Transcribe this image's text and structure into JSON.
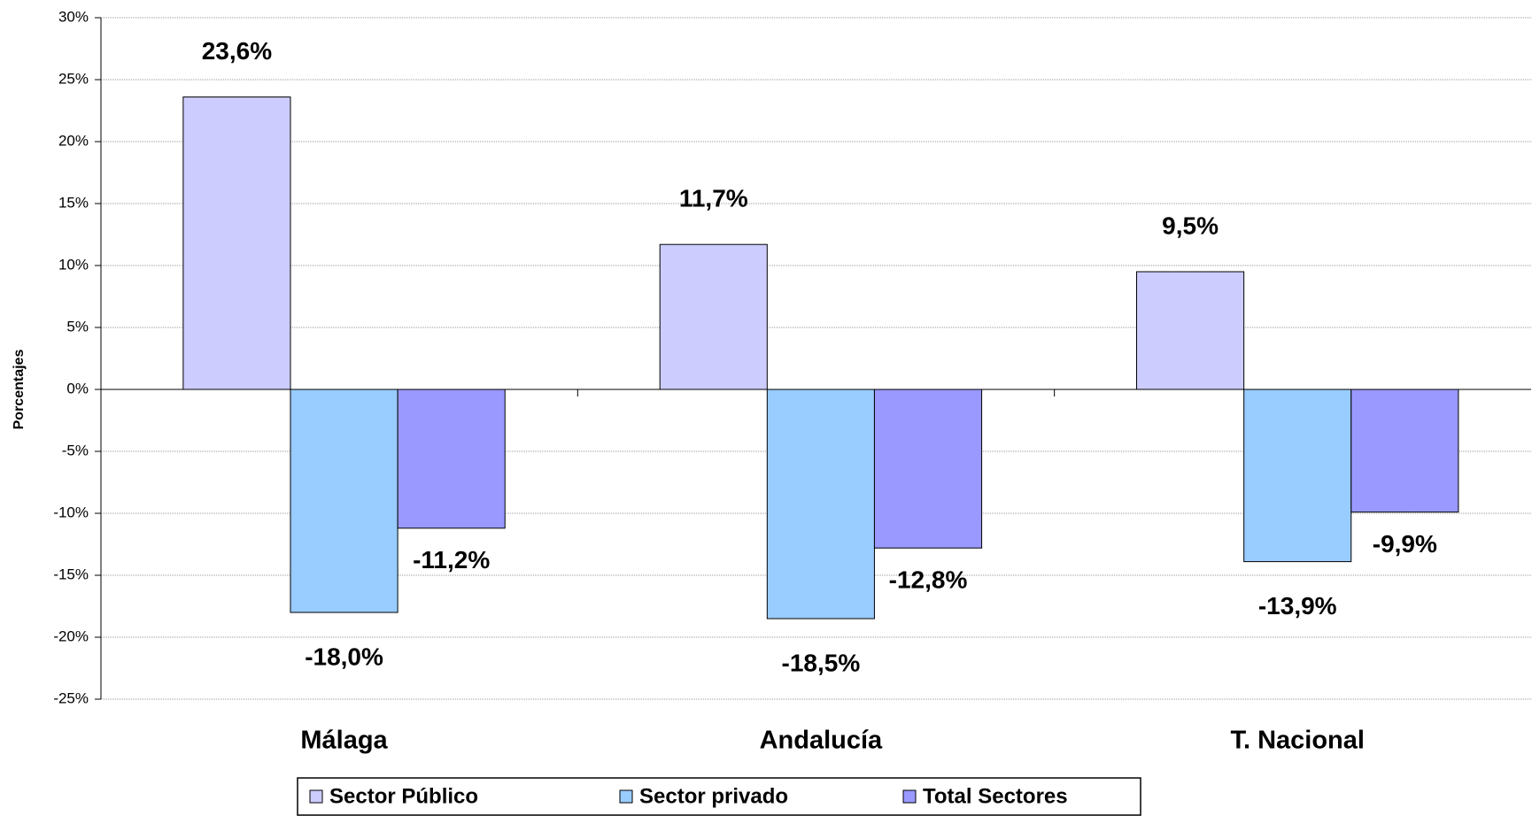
{
  "chart_data": {
    "type": "bar",
    "y_label": "Porcentajes",
    "categories": [
      "Málaga",
      "Andalucía",
      "T. Nacional"
    ],
    "series": [
      {
        "name": "Sector Público",
        "color": "#ccccff",
        "label_color": "#1a1ae6",
        "values": [
          23.6,
          11.7,
          9.5
        ],
        "value_labels": [
          "23,6%",
          "11,7%",
          "9,5%"
        ]
      },
      {
        "name": "Sector privado",
        "color": "#99ccff",
        "label_color": "#1a1ae6",
        "values": [
          -18.0,
          -18.5,
          -13.9
        ],
        "value_labels": [
          "-18,0%",
          "-18,5%",
          "-13,9%"
        ]
      },
      {
        "name": "Total Sectores",
        "color": "#9999ff",
        "label_color": "#000080",
        "values": [
          -11.2,
          -12.8,
          -9.9
        ],
        "value_labels": [
          "-11,2%",
          "-12,8%",
          "-9,9%"
        ]
      }
    ],
    "ylim": [
      -25,
      30
    ],
    "yticks": [
      {
        "value": -25,
        "label": "-25%"
      },
      {
        "value": -20,
        "label": "-20%"
      },
      {
        "value": -15,
        "label": "-15%"
      },
      {
        "value": -10,
        "label": "-10%"
      },
      {
        "value": -5,
        "label": "-5%"
      },
      {
        "value": 0,
        "label": "0%"
      },
      {
        "value": 5,
        "label": "5%"
      },
      {
        "value": 10,
        "label": "10%"
      },
      {
        "value": 15,
        "label": "15%"
      },
      {
        "value": 20,
        "label": "20%"
      },
      {
        "value": 25,
        "label": "25%"
      },
      {
        "value": 30,
        "label": "30%"
      }
    ],
    "grid": true,
    "legend": "bottom"
  }
}
